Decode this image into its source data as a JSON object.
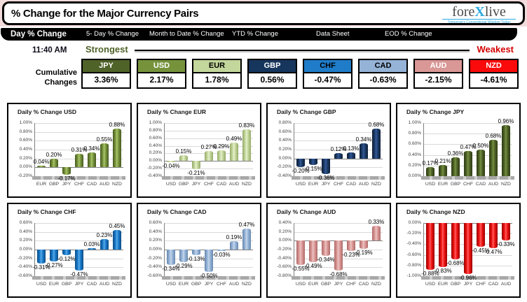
{
  "header": {
    "title": "% Change for the Major Currency Pairs",
    "logo": {
      "part1": "fore",
      "part2": "X",
      "part3": "live",
      "tagline": "Tomorrow's Conventional Wisdom Today"
    }
  },
  "tabs": [
    {
      "label": "Day % Change",
      "active": true
    },
    {
      "label": "5- Day % Change",
      "active": false
    },
    {
      "label": "Month to Date % Change",
      "active": false
    },
    {
      "label": "YTD % Change",
      "active": false
    },
    {
      "label": "Data Sheet",
      "active": false
    },
    {
      "label": "EOD % Change",
      "active": false
    }
  ],
  "status": {
    "time": "11:40 AM",
    "strongest": "Strongest",
    "weakest": "Weakest",
    "strongest_color": "#4F6228",
    "weakest_color": "#D40000",
    "cumulative_line1": "Cumulative",
    "cumulative_line2": "Changes"
  },
  "currencies": [
    {
      "code": "JPY",
      "value": "3.36%",
      "bg": "#4F6228",
      "fg": "#FFFFFF"
    },
    {
      "code": "USD",
      "value": "2.17%",
      "bg": "#76933C",
      "fg": "#FFFFFF"
    },
    {
      "code": "EUR",
      "value": "1.78%",
      "bg": "#C3D69B",
      "fg": "#000000"
    },
    {
      "code": "GBP",
      "value": "0.56%",
      "bg": "#17365D",
      "fg": "#FFFFFF"
    },
    {
      "code": "CHF",
      "value": "-0.47%",
      "bg": "#1F7CC9",
      "fg": "#000000"
    },
    {
      "code": "CAD",
      "value": "-0.63%",
      "bg": "#95B3D7",
      "fg": "#000000"
    },
    {
      "code": "AUD",
      "value": "-2.15%",
      "bg": "#D99795",
      "fg": "#FFFFFF"
    },
    {
      "code": "NZD",
      "value": "-4.61%",
      "bg": "#FA0A0A",
      "fg": "#FFFFFF"
    }
  ],
  "chart_data": [
    {
      "type": "bar",
      "title": "Daily % Change USD",
      "categories": [
        "EUR",
        "GBP",
        "JPY",
        "CHF",
        "CAD",
        "AUD",
        "NZD"
      ],
      "values": [
        0.04,
        0.2,
        -0.17,
        0.31,
        0.34,
        0.55,
        0.88
      ],
      "labels": [
        "0.04%",
        "0.20%",
        "-0.17%",
        "0.31%",
        "0.34%",
        "0.55%",
        "0.88%"
      ],
      "yticks": [
        "1.00%",
        "0.80%",
        "0.60%",
        "0.40%",
        "0.20%",
        "0.00%",
        "-0.20%"
      ],
      "ylim": [
        -0.2,
        1.0
      ],
      "grid": true,
      "legend": "none",
      "bar_color": "#76933C",
      "bar_dark": "#46591F",
      "bar_light": "#A9C46A"
    },
    {
      "type": "bar",
      "title": "Daily % Change EUR",
      "categories": [
        "USD",
        "GBP",
        "JPY",
        "CHF",
        "CAD",
        "AUD",
        "NZD"
      ],
      "values": [
        -0.04,
        0.15,
        -0.21,
        0.27,
        0.29,
        0.49,
        0.83
      ],
      "labels": [
        "-0.04%",
        "0.15%",
        "-0.21%",
        "0.27%",
        "0.29%",
        "0.49%",
        "0.83%"
      ],
      "yticks": [
        "1.00%",
        "0.80%",
        "0.60%",
        "0.40%",
        "0.20%",
        "0.00%",
        "-0.20%",
        "-0.40%"
      ],
      "ylim": [
        -0.4,
        1.0
      ],
      "grid": true,
      "legend": "none",
      "bar_color": "#C3D69B",
      "bar_dark": "#93A869",
      "bar_light": "#E4EFC9"
    },
    {
      "type": "bar",
      "title": "Daily % Change GBP",
      "categories": [
        "USD",
        "EUR",
        "JPY",
        "CHF",
        "CAD",
        "AUD",
        "NZD"
      ],
      "values": [
        -0.2,
        -0.15,
        -0.36,
        0.12,
        0.13,
        0.34,
        0.68
      ],
      "labels": [
        "-0.20%",
        "-0.15%",
        "-0.36%",
        "0.12%",
        "0.13%",
        "0.34%",
        "0.68%"
      ],
      "yticks": [
        "0.80%",
        "0.60%",
        "0.40%",
        "0.20%",
        "0.00%",
        "-0.20%",
        "-0.40%"
      ],
      "ylim": [
        -0.4,
        0.8
      ],
      "grid": true,
      "legend": "none",
      "bar_color": "#1B3A64",
      "bar_dark": "#0E1F38",
      "bar_light": "#33599A"
    },
    {
      "type": "bar",
      "title": "Daily % Change JPY",
      "categories": [
        "USD",
        "EUR",
        "GBP",
        "CHF",
        "CAD",
        "AUD",
        "NZD"
      ],
      "values": [
        0.17,
        0.21,
        0.36,
        0.47,
        0.5,
        0.68,
        0.96
      ],
      "labels": [
        "0.17%",
        "0.21%",
        "0.36%",
        "0.47%",
        "0.50%",
        "0.68%",
        "0.96%"
      ],
      "yticks": [
        "1.00%",
        "0.80%",
        "0.60%",
        "0.40%",
        "0.20%",
        "0.00%"
      ],
      "ylim": [
        0.0,
        1.0
      ],
      "grid": true,
      "legend": "none",
      "bar_color": "#4F6228",
      "bar_dark": "#2C3A12",
      "bar_light": "#748F41"
    },
    {
      "type": "bar",
      "title": "Daily % Change CHF",
      "categories": [
        "USD",
        "EUR",
        "GBP",
        "JPY",
        "CAD",
        "AUD",
        "NZD"
      ],
      "values": [
        -0.31,
        -0.27,
        -0.12,
        -0.47,
        0.03,
        0.23,
        0.45
      ],
      "labels": [
        "-0.31%",
        "-0.27%",
        "-0.12%",
        "-0.47%",
        "0.03%",
        "0.23%",
        "0.45%"
      ],
      "yticks": [
        "0.60%",
        "0.40%",
        "0.20%",
        "0.00%",
        "-0.20%",
        "-0.40%",
        "-0.60%"
      ],
      "ylim": [
        -0.6,
        0.6
      ],
      "grid": true,
      "legend": "none",
      "bar_color": "#1878C8",
      "bar_dark": "#0C4C85",
      "bar_light": "#55A9E8"
    },
    {
      "type": "bar",
      "title": "Daily % Change CAD",
      "categories": [
        "USD",
        "EUR",
        "GBP",
        "JPY",
        "CHF",
        "AUD",
        "NZD"
      ],
      "values": [
        -0.34,
        -0.29,
        -0.13,
        -0.5,
        -0.03,
        0.19,
        0.47
      ],
      "labels": [
        "-0.34%",
        "-0.29%",
        "-0.13%",
        "-0.50%",
        "-0.03%",
        "0.19%",
        "0.47%"
      ],
      "yticks": [
        "0.60%",
        "0.40%",
        "0.20%",
        "0.00%",
        "-0.20%",
        "-0.40%",
        "-0.60%"
      ],
      "ylim": [
        -0.6,
        0.6
      ],
      "grid": true,
      "legend": "none",
      "bar_color": "#95B3D7",
      "bar_dark": "#6788AE",
      "bar_light": "#C3D6EB"
    },
    {
      "type": "bar",
      "title": "Daily % Change AUD",
      "categories": [
        "USD",
        "EUR",
        "GBP",
        "JPY",
        "CHF",
        "CAD",
        "NZD"
      ],
      "values": [
        -0.55,
        -0.49,
        -0.34,
        -0.68,
        -0.23,
        -0.19,
        0.33
      ],
      "labels": [
        "-0.55%",
        "-0.49%",
        "-0.34%",
        "-0.68%",
        "-0.23%",
        "-0.19%",
        "0.33%"
      ],
      "yticks": [
        "0.40%",
        "0.20%",
        "0.00%",
        "-0.20%",
        "-0.40%",
        "-0.60%",
        "-0.80%"
      ],
      "ylim": [
        -0.8,
        0.4
      ],
      "grid": true,
      "legend": "none",
      "bar_color": "#D99795",
      "bar_dark": "#AE6A68",
      "bar_light": "#EBC2C1"
    },
    {
      "type": "bar",
      "title": "Daily % Change NZD",
      "categories": [
        "USD",
        "EUR",
        "GBP",
        "JPY",
        "CHF",
        "CAD",
        "AUD"
      ],
      "values": [
        -0.88,
        -0.83,
        -0.68,
        -0.96,
        -0.45,
        -0.47,
        -0.33
      ],
      "labels": [
        "-0.88%",
        "-0.83%",
        "-0.68%",
        "-0.96%",
        "-0.45%",
        "-0.47%",
        "-0.33%"
      ],
      "yticks": [
        "0.00%",
        "-0.20%",
        "-0.40%",
        "-0.60%",
        "-0.80%",
        "-1.00%"
      ],
      "ylim": [
        -1.0,
        0.0
      ],
      "grid": true,
      "legend": "none",
      "bar_color": "#EE1111",
      "bar_dark": "#990000",
      "bar_light": "#FF5A5A"
    }
  ]
}
